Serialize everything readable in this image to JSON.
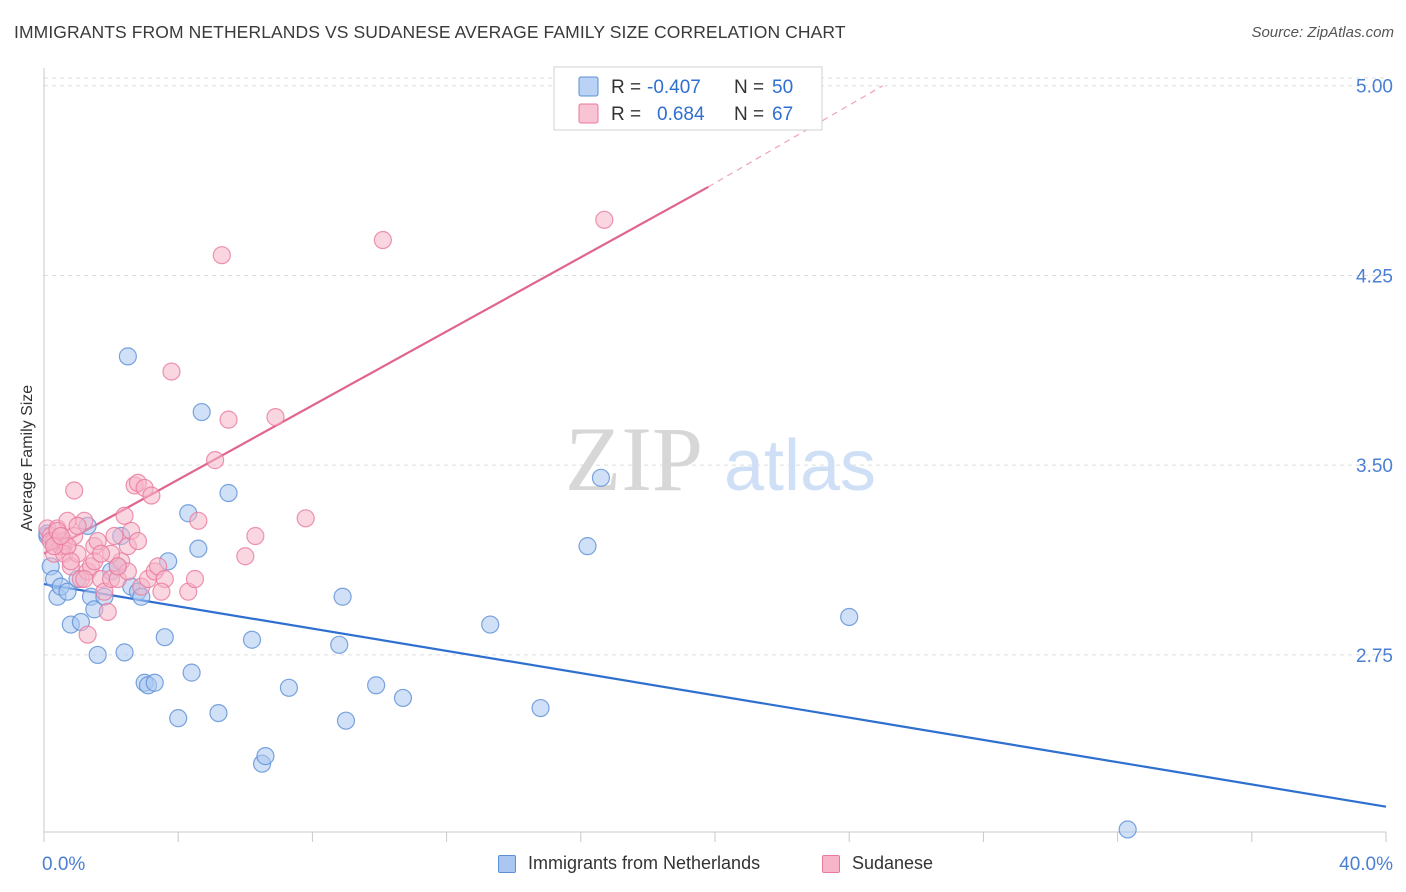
{
  "header": {
    "title": "IMMIGRANTS FROM NETHERLANDS VS SUDANESE AVERAGE FAMILY SIZE CORRELATION CHART",
    "source": "Source: ZipAtlas.com"
  },
  "watermark": {
    "zip": "ZIP",
    "atlas": "atlas"
  },
  "colors": {
    "blue_fill": "#a9c7f0",
    "blue_stroke": "#5b8fd6",
    "blue_line": "#2f6fd0",
    "pink_fill": "#f6b5c9",
    "pink_stroke": "#e8799c",
    "pink_line": "#e0648c",
    "axis_text": "#4a7fd4",
    "grid": "#dddddd"
  },
  "stats_legend": {
    "rows": [
      {
        "r_label": "R =",
        "r_value": "-0.407",
        "n_label": "N =",
        "n_value": "50",
        "series": "blue"
      },
      {
        "r_label": "R =",
        "r_value": "0.684",
        "n_label": "N =",
        "n_value": "67",
        "series": "pink"
      }
    ]
  },
  "bottom_legend": {
    "items": [
      {
        "label": "Immigrants from Netherlands",
        "series": "blue"
      },
      {
        "label": "Sudanese",
        "series": "pink"
      }
    ]
  },
  "chart_data": {
    "type": "scatter",
    "title": "IMMIGRANTS FROM NETHERLANDS VS SUDANESE AVERAGE FAMILY SIZE CORRELATION CHART",
    "ylabel": "Average Family Size",
    "xlabel": "",
    "xlim": [
      0,
      40
    ],
    "ylim": [
      2.05,
      5.07
    ],
    "x_tick_labels": [
      {
        "value": 0,
        "label": "0.0%"
      },
      {
        "value": 40,
        "label": "40.0%"
      }
    ],
    "y_ticks": [
      {
        "value": 2.75,
        "label": "2.75"
      },
      {
        "value": 3.5,
        "label": "3.50"
      },
      {
        "value": 4.25,
        "label": "4.25"
      },
      {
        "value": 5.0,
        "label": "5.00"
      }
    ],
    "grid": true,
    "series": [
      {
        "name": "Immigrants from Netherlands",
        "color": "blue",
        "trend": {
          "x": [
            0,
            40
          ],
          "y": [
            3.03,
            2.15
          ],
          "dashed_extension": false
        },
        "points": [
          [
            0.1,
            3.22
          ],
          [
            0.2,
            3.1
          ],
          [
            0.3,
            3.05
          ],
          [
            0.4,
            2.98
          ],
          [
            0.5,
            3.02
          ],
          [
            0.7,
            3.0
          ],
          [
            0.8,
            2.87
          ],
          [
            1.0,
            3.05
          ],
          [
            1.1,
            2.88
          ],
          [
            1.3,
            3.26
          ],
          [
            1.4,
            2.98
          ],
          [
            1.5,
            2.93
          ],
          [
            1.6,
            2.75
          ],
          [
            1.8,
            2.98
          ],
          [
            2.0,
            3.08
          ],
          [
            2.2,
            3.1
          ],
          [
            2.3,
            3.22
          ],
          [
            2.4,
            2.76
          ],
          [
            2.5,
            3.93
          ],
          [
            2.6,
            3.02
          ],
          [
            2.8,
            3.0
          ],
          [
            2.9,
            2.98
          ],
          [
            3.0,
            2.64
          ],
          [
            3.1,
            2.63
          ],
          [
            3.3,
            2.64
          ],
          [
            3.6,
            2.82
          ],
          [
            3.7,
            3.12
          ],
          [
            4.0,
            2.5
          ],
          [
            4.3,
            3.31
          ],
          [
            4.4,
            2.68
          ],
          [
            4.6,
            3.17
          ],
          [
            4.7,
            3.71
          ],
          [
            5.2,
            2.52
          ],
          [
            5.5,
            3.39
          ],
          [
            6.2,
            2.81
          ],
          [
            6.5,
            2.32
          ],
          [
            6.6,
            2.35
          ],
          [
            7.3,
            2.62
          ],
          [
            8.8,
            2.79
          ],
          [
            8.9,
            2.98
          ],
          [
            9.0,
            2.49
          ],
          [
            9.9,
            2.63
          ],
          [
            10.7,
            2.58
          ],
          [
            13.3,
            2.87
          ],
          [
            14.8,
            2.54
          ],
          [
            16.2,
            3.18
          ],
          [
            16.6,
            3.45
          ],
          [
            24.0,
            2.9
          ],
          [
            32.3,
            2.06
          ],
          [
            0.1,
            3.23
          ]
        ]
      },
      {
        "name": "Sudanese",
        "color": "pink",
        "trend": {
          "x": [
            0,
            19.8
          ],
          "y": [
            3.15,
            4.6
          ],
          "dashed_extension": true,
          "dash_to": {
            "x": 25,
            "y": 5.0
          }
        },
        "points": [
          [
            0.1,
            3.25
          ],
          [
            0.2,
            3.22
          ],
          [
            0.3,
            3.2
          ],
          [
            0.3,
            3.15
          ],
          [
            0.4,
            3.25
          ],
          [
            0.5,
            3.18
          ],
          [
            0.6,
            3.2
          ],
          [
            0.6,
            3.15
          ],
          [
            0.7,
            3.28
          ],
          [
            0.8,
            3.1
          ],
          [
            0.9,
            3.4
          ],
          [
            0.9,
            3.22
          ],
          [
            1.0,
            3.15
          ],
          [
            1.1,
            3.05
          ],
          [
            1.2,
            3.28
          ],
          [
            1.3,
            3.08
          ],
          [
            1.3,
            2.83
          ],
          [
            1.4,
            3.1
          ],
          [
            1.5,
            3.18
          ],
          [
            1.6,
            3.2
          ],
          [
            1.7,
            3.05
          ],
          [
            1.8,
            3.0
          ],
          [
            1.9,
            2.92
          ],
          [
            2.0,
            3.05
          ],
          [
            2.1,
            3.22
          ],
          [
            2.2,
            3.05
          ],
          [
            2.3,
            3.12
          ],
          [
            2.4,
            3.3
          ],
          [
            2.5,
            3.18
          ],
          [
            2.6,
            3.24
          ],
          [
            2.7,
            3.42
          ],
          [
            2.8,
            3.43
          ],
          [
            2.9,
            3.02
          ],
          [
            3.0,
            3.41
          ],
          [
            3.1,
            3.05
          ],
          [
            3.2,
            3.38
          ],
          [
            3.3,
            3.08
          ],
          [
            3.4,
            3.1
          ],
          [
            3.6,
            3.05
          ],
          [
            3.8,
            3.87
          ],
          [
            4.3,
            3.0
          ],
          [
            4.5,
            3.05
          ],
          [
            4.6,
            3.28
          ],
          [
            5.1,
            3.52
          ],
          [
            5.3,
            4.33
          ],
          [
            5.5,
            3.68
          ],
          [
            6.0,
            3.14
          ],
          [
            6.3,
            3.22
          ],
          [
            6.9,
            3.69
          ],
          [
            7.8,
            3.29
          ],
          [
            10.1,
            4.39
          ],
          [
            16.7,
            4.47
          ],
          [
            0.2,
            3.2
          ],
          [
            0.4,
            3.24
          ],
          [
            0.7,
            3.18
          ],
          [
            1.0,
            3.26
          ],
          [
            1.5,
            3.12
          ],
          [
            2.0,
            3.15
          ],
          [
            2.5,
            3.08
          ],
          [
            0.3,
            3.18
          ],
          [
            0.5,
            3.22
          ],
          [
            0.8,
            3.12
          ],
          [
            1.2,
            3.05
          ],
          [
            1.7,
            3.15
          ],
          [
            2.2,
            3.1
          ],
          [
            2.8,
            3.2
          ],
          [
            3.5,
            3.0
          ]
        ]
      }
    ]
  }
}
